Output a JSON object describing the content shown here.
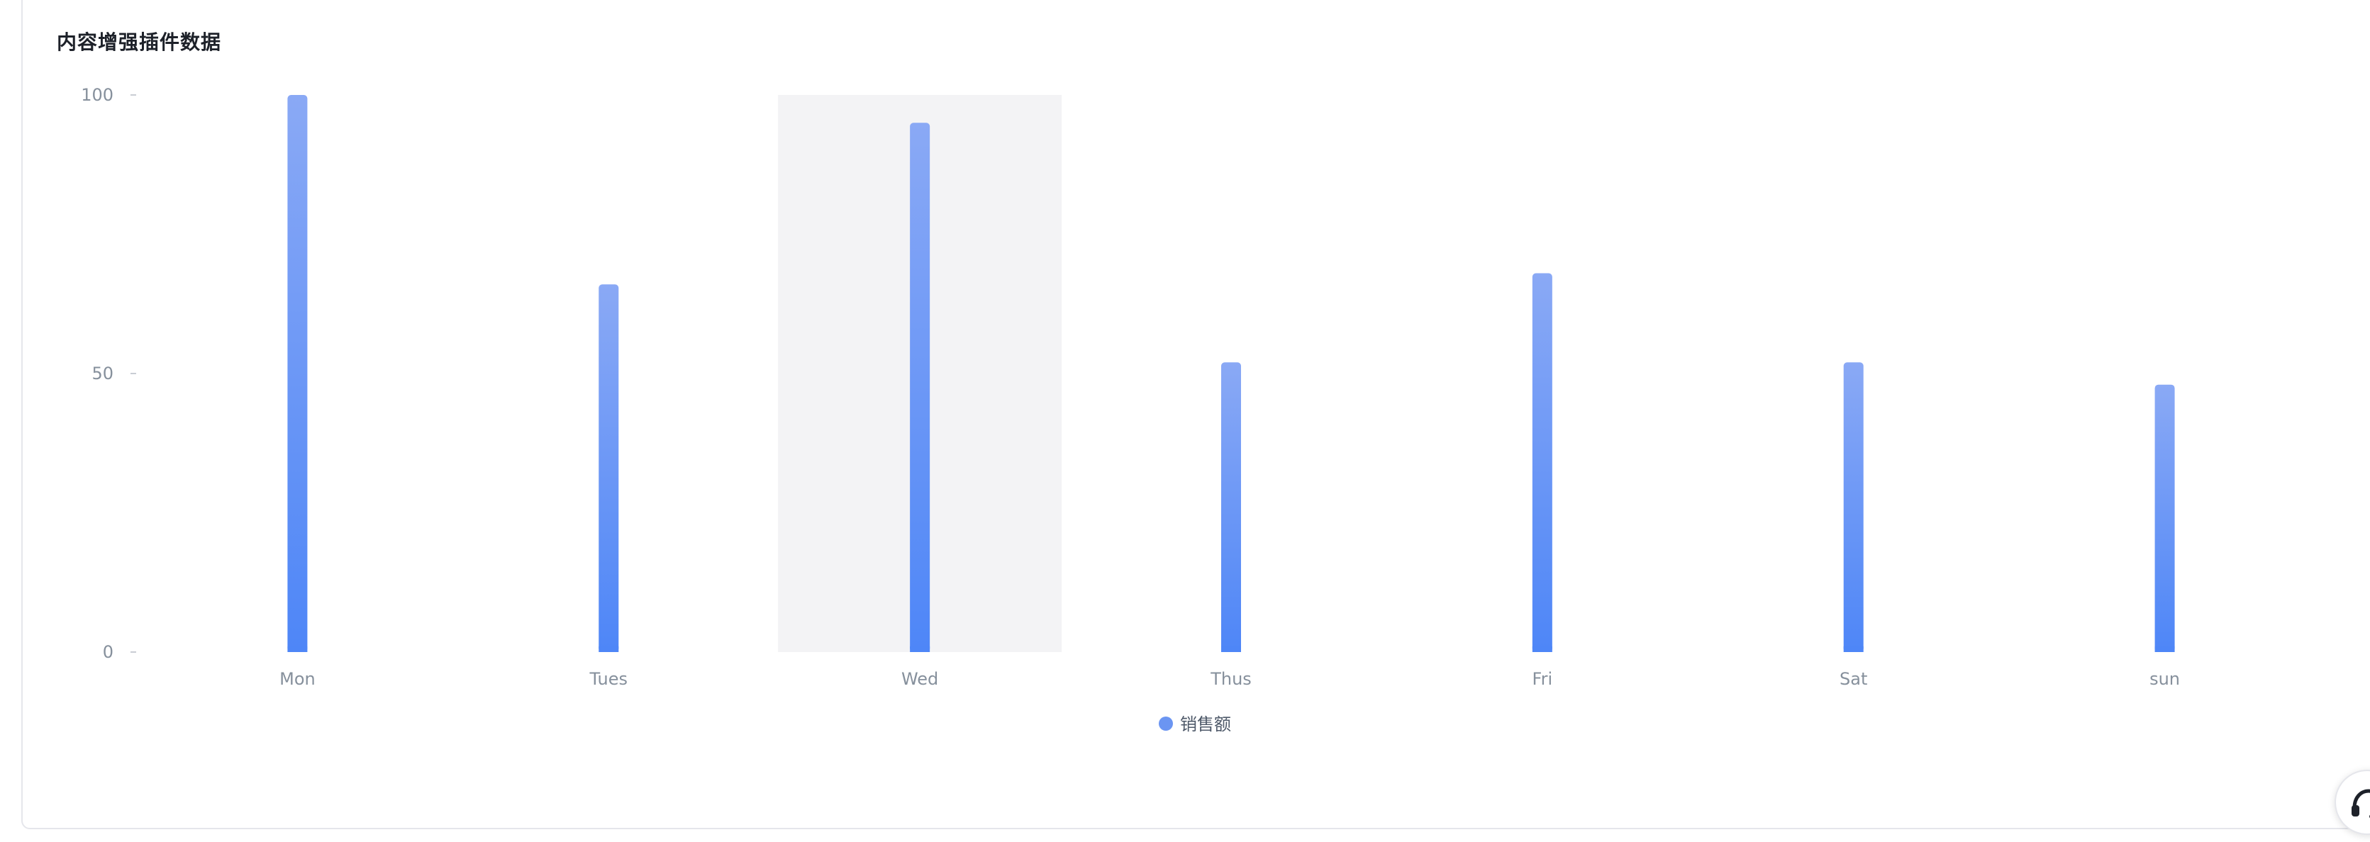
{
  "card": {
    "title": "内容增强插件数据"
  },
  "chart_data": {
    "type": "bar",
    "categories": [
      "Mon",
      "Tues",
      "Wed",
      "Thus",
      "Fri",
      "Sat",
      "sun"
    ],
    "series": [
      {
        "name": "销售额",
        "values": [
          100,
          66,
          95,
          52,
          68,
          52,
          48
        ]
      }
    ],
    "ylim": [
      0,
      100
    ],
    "yticks": [
      0,
      50,
      100
    ],
    "highlighted_category": "Wed",
    "legend_position": "bottom-center",
    "colors": {
      "bar_top": "#8aa9f5",
      "bar_bottom": "#4e86f7",
      "legend_dot": "#6b95f2",
      "highlight_band": "#f3f3f5",
      "tick_text": "#86909c",
      "tick_mark": "#c9cdd4"
    }
  },
  "help": {
    "icon": "headset-icon"
  }
}
